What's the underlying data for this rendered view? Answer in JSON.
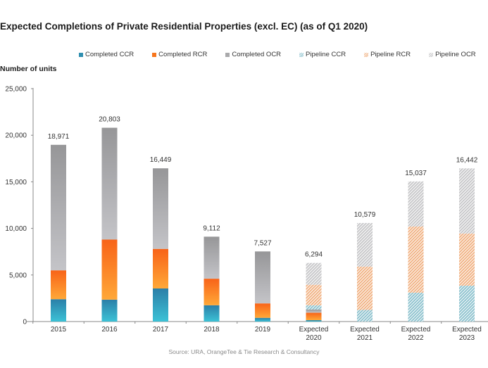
{
  "chart_data": {
    "type": "bar",
    "stacked": true,
    "title": "Expected Completions of Private Residential Properties (excl. EC) (as of Q1 2020)",
    "ylabel": "Number of units",
    "xlabel": "",
    "ylim": [
      0,
      25000
    ],
    "yticks": [
      0,
      5000,
      10000,
      15000,
      20000,
      25000
    ],
    "ytick_labels": [
      "0",
      "5,000",
      "10,000",
      "15,000",
      "20,000",
      "25,000"
    ],
    "grid": false,
    "legend_position": "top",
    "categories": [
      [
        "2015"
      ],
      [
        "2016"
      ],
      [
        "2017"
      ],
      [
        "2018"
      ],
      [
        "2019"
      ],
      [
        "Expected",
        "2020"
      ],
      [
        "Expected",
        "2021"
      ],
      [
        "Expected",
        "2022"
      ],
      [
        "Expected",
        "2023"
      ]
    ],
    "series": [
      {
        "name": "Completed CCR",
        "color": "#2f8fb0",
        "pattern": "solid",
        "values": [
          2400,
          2350,
          3550,
          1750,
          400,
          150,
          0,
          0,
          0
        ]
      },
      {
        "name": "Completed RCR",
        "color": "#f7751c",
        "pattern": "solid",
        "values": [
          3100,
          6450,
          4250,
          2850,
          1550,
          800,
          0,
          0,
          0
        ]
      },
      {
        "name": "Completed OCR",
        "color": "#a9a9ab",
        "pattern": "solid",
        "values": [
          13471,
          12003,
          8649,
          4512,
          5577,
          350,
          0,
          0,
          0
        ]
      },
      {
        "name": "Pipeline CCR",
        "color": "#8fc3cf",
        "pattern": "hatched",
        "values": [
          0,
          0,
          0,
          0,
          0,
          450,
          1250,
          3100,
          3850
        ]
      },
      {
        "name": "Pipeline RCR",
        "color": "#f1b385",
        "pattern": "hatched",
        "values": [
          0,
          0,
          0,
          0,
          0,
          2200,
          4650,
          7100,
          5600
        ]
      },
      {
        "name": "Pipeline OCR",
        "color": "#c8c8ca",
        "pattern": "hatched",
        "values": [
          0,
          0,
          0,
          0,
          0,
          2344,
          4679,
          4837,
          6992
        ]
      }
    ],
    "totals": [
      18971,
      20803,
      16449,
      9112,
      7527,
      6294,
      10579,
      15037,
      16442
    ],
    "total_labels": [
      "18,971",
      "20,803",
      "16,449",
      "9,112",
      "7,527",
      "6,294",
      "10,579",
      "15,037",
      "16,442"
    ],
    "source": "Source: URA, OrangeTee & Tie Research & Consultancy"
  }
}
